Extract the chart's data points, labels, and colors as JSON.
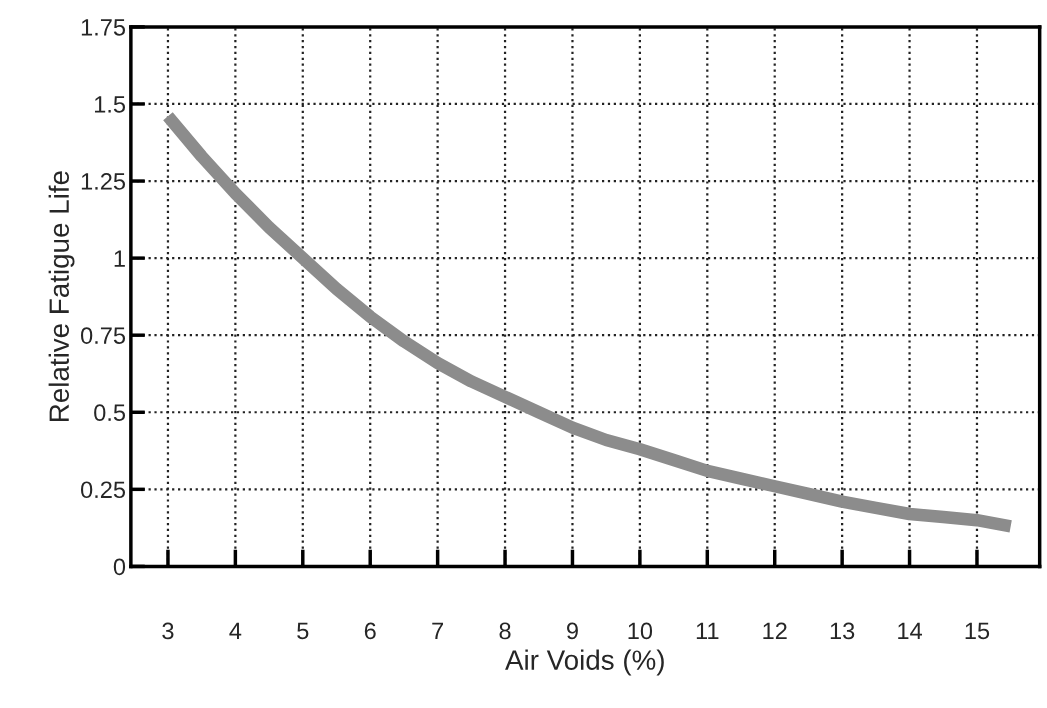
{
  "chart_data": {
    "type": "line",
    "xlabel": "Air Voids (%)",
    "ylabel": "Relative Fatigue Life",
    "x": [
      3,
      3.5,
      4,
      4.5,
      5,
      5.5,
      6,
      6.5,
      7,
      7.5,
      8,
      8.5,
      9,
      9.5,
      10,
      10.5,
      11,
      11.5,
      12,
      12.5,
      13,
      13.5,
      14,
      14.5,
      15,
      15.5
    ],
    "series": [
      {
        "color": "#8c8c8c",
        "values": [
          1.46,
          1.33,
          1.21,
          1.1,
          1.0,
          0.9,
          0.81,
          0.73,
          0.66,
          0.6,
          0.55,
          0.5,
          0.45,
          0.41,
          0.38,
          0.345,
          0.31,
          0.285,
          0.26,
          0.235,
          0.21,
          0.19,
          0.17,
          0.16,
          0.15,
          0.13
        ]
      }
    ],
    "xlim": [
      2.45,
      15.93
    ],
    "ylim": [
      0,
      1.75
    ],
    "xticks": [
      3,
      4,
      5,
      6,
      7,
      8,
      9,
      10,
      11,
      12,
      13,
      14,
      15
    ],
    "yticks": [
      0,
      0.25,
      0.5,
      0.75,
      1,
      1.25,
      1.5,
      1.75
    ],
    "grid": true,
    "marker": "none",
    "line_style": "solid"
  }
}
